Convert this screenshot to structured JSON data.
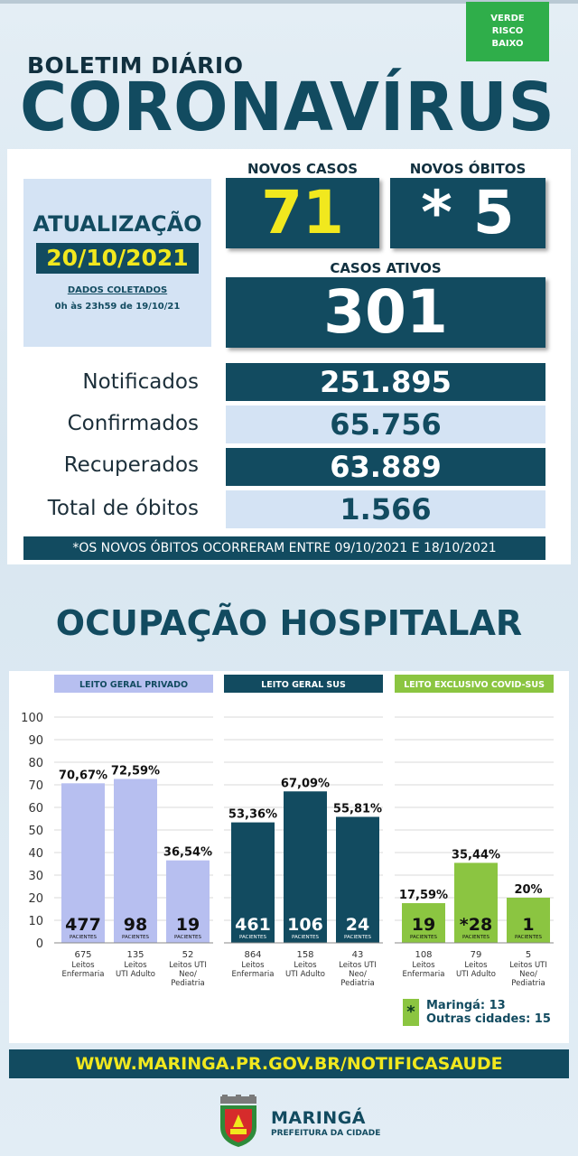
{
  "badge": {
    "line1": "VERDE",
    "line2": "RISCO",
    "line3": "BAIXO"
  },
  "header": {
    "subtitle": "BOLETIM DIÁRIO",
    "title": "CORONAVÍRUS"
  },
  "update": {
    "title": "ATUALIZAÇÃO",
    "date": "20/10/2021",
    "note1": "DADOS COLETADOS",
    "note2": "0h às 23h59 de 19/10/21"
  },
  "highlights": {
    "new_cases_label": "NOVOS CASOS",
    "new_cases": "71",
    "new_deaths_label": "NOVOS ÓBITOS",
    "new_deaths": "* 5",
    "active_label": "CASOS ATIVOS",
    "active": "301"
  },
  "stats": [
    {
      "label": "Notificados",
      "value": "251.895"
    },
    {
      "label": "Confirmados",
      "value": "65.756"
    },
    {
      "label": "Recuperados",
      "value": "63.889"
    },
    {
      "label": "Total de óbitos",
      "value": "1.566"
    }
  ],
  "footnote": "*OS NOVOS ÓBITOS OCORRERAM ENTRE 09/10/2021 E 18/10/2021",
  "occupancy_title": "OCUPAÇÃO HOSPITALAR",
  "legend": {
    "symbol": "*",
    "line1": "Maringá: 13",
    "line2": "Outras cidades: 15"
  },
  "url": "WWW.MARINGA.PR.GOV.BR/NOTIFICASAUDE",
  "logo": {
    "name": "MARINGÁ",
    "sub": "PREFEITURA DA CIDADE"
  },
  "colors": {
    "navy": "#124b60",
    "lavender": "#b7bff0",
    "green": "#8bc541",
    "yellow": "#f1e81e",
    "light_blue": "#d4e3f4"
  },
  "chart_data": {
    "type": "bar",
    "ylim": [
      0,
      100
    ],
    "yticks": [
      0,
      10,
      20,
      30,
      40,
      50,
      60,
      70,
      80,
      90,
      100
    ],
    "grid": true,
    "patients_label": "PACIENTES",
    "groups": [
      {
        "title": "LEITO GERAL PRIVADO",
        "color": "#b7bff0",
        "header_color": "#b7bff0",
        "header_text_color": "#124b60",
        "patient_text_color": "#111111",
        "bars": [
          {
            "pct": 70.67,
            "pct_label": "70,67%",
            "patients": "477",
            "beds": "675",
            "label": [
              "Leitos",
              "Enfermaria"
            ]
          },
          {
            "pct": 72.59,
            "pct_label": "72,59%",
            "patients": "98",
            "beds": "135",
            "label": [
              "Leitos",
              "UTI Adulto"
            ]
          },
          {
            "pct": 36.54,
            "pct_label": "36,54%",
            "patients": "19",
            "beds": "52",
            "label": [
              "Leitos UTI",
              "Neo/",
              "Pediatria"
            ]
          }
        ]
      },
      {
        "title": "LEITO GERAL SUS",
        "color": "#124b60",
        "header_color": "#124b60",
        "header_text_color": "#ffffff",
        "patient_text_color": "#ffffff",
        "bars": [
          {
            "pct": 53.36,
            "pct_label": "53,36%",
            "patients": "461",
            "beds": "864",
            "label": [
              "Leitos",
              "Enfermaria"
            ]
          },
          {
            "pct": 67.09,
            "pct_label": "67,09%",
            "patients": "106",
            "beds": "158",
            "label": [
              "Leitos",
              "UTI Adulto"
            ]
          },
          {
            "pct": 55.81,
            "pct_label": "55,81%",
            "patients": "24",
            "beds": "43",
            "label": [
              "Leitos UTI",
              "Neo/",
              "Pediatria"
            ]
          }
        ]
      },
      {
        "title": "LEITO EXCLUSIVO COVID-SUS",
        "color": "#8bc541",
        "header_color": "#8bc541",
        "header_text_color": "#ffffff",
        "patient_text_color": "#111111",
        "bars": [
          {
            "pct": 17.59,
            "pct_label": "17,59%",
            "patients": "19",
            "beds": "108",
            "label": [
              "Leitos",
              "Enfermaria"
            ]
          },
          {
            "pct": 35.44,
            "pct_label": "35,44%",
            "patients": "*28",
            "beds": "79",
            "label": [
              "Leitos",
              "UTI Adulto"
            ]
          },
          {
            "pct": 20,
            "pct_label": "20%",
            "patients": "1",
            "beds": "5",
            "label": [
              "Leitos UTI",
              "Neo/",
              "Pediatria"
            ]
          }
        ]
      }
    ]
  }
}
